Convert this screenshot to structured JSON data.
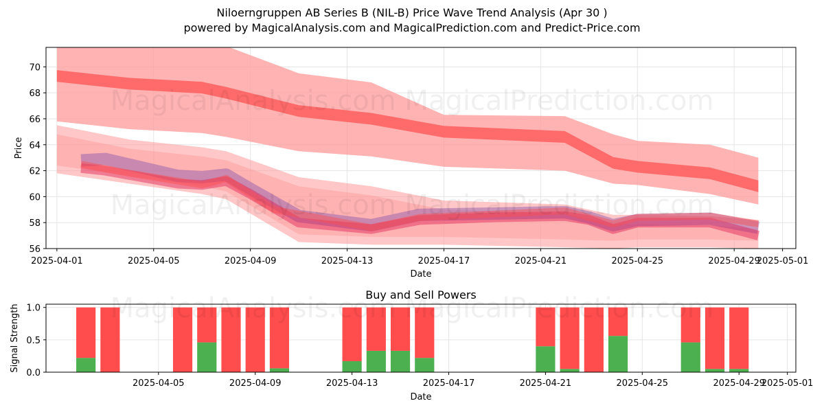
{
  "title": "Niloerngruppen AB Series B (NIL-B) Price Wave Trend Analysis (Apr 30 )",
  "subtitle": "powered by MagicalAnalysis.com and MagicalPrediction.com and Predict-Price.com",
  "watermark": "MagicalAnalysis.com    MagicalPrediction.com",
  "colors": {
    "band_light": "#ff9999",
    "band_dark": "#ff4d4d",
    "purple": "#8855aa",
    "crimson": "#dd2255",
    "buy": "#4caf50",
    "sell": "#ff4d4d",
    "grid": "#e5e5e5"
  },
  "chart_data": [
    {
      "type": "area",
      "title": "",
      "xlabel": "Date",
      "ylabel": "Price",
      "xlim": [
        "2025-03-31",
        "2025-05-01"
      ],
      "ylim": [
        56,
        71.5
      ],
      "x_ticks": [
        "2025-04-01",
        "2025-04-05",
        "2025-04-09",
        "2025-04-13",
        "2025-04-17",
        "2025-04-21",
        "2025-04-25",
        "2025-04-29",
        "2025-05-01"
      ],
      "y_ticks": [
        56,
        58,
        60,
        62,
        64,
        66,
        68,
        70
      ],
      "grid": true,
      "x": [
        "2025-04-01",
        "2025-04-04",
        "2025-04-07",
        "2025-04-08",
        "2025-04-11",
        "2025-04-14",
        "2025-04-17",
        "2025-04-22",
        "2025-04-24",
        "2025-04-25",
        "2025-04-28",
        "2025-04-30"
      ],
      "upper_band": {
        "center": [
          69.3,
          68.7,
          68.4,
          68.0,
          66.6,
          66.0,
          65.0,
          64.6,
          62.6,
          62.3,
          61.8,
          60.8
        ],
        "lower": [
          65.8,
          65.2,
          64.9,
          64.6,
          63.5,
          63.1,
          62.3,
          62.0,
          61.0,
          60.9,
          60.2,
          59.4
        ],
        "upper": [
          71.8,
          71.8,
          71.8,
          71.6,
          69.5,
          68.8,
          66.3,
          66.2,
          64.8,
          64.3,
          64.0,
          63.0
        ]
      },
      "lower_band": {
        "lower": [
          61.8,
          61.0,
          60.2,
          59.8,
          56.5,
          56.3,
          56.3,
          56.1,
          56.0,
          56.1,
          56.1,
          56.0
        ],
        "upper": [
          65.5,
          64.4,
          63.8,
          63.5,
          61.5,
          60.8,
          59.7,
          59.4,
          58.6,
          58.6,
          58.5,
          58.2
        ]
      },
      "series": [
        {
          "name": "",
          "x": [
            "2025-04-02",
            "2025-04-03",
            "2025-04-06",
            "2025-04-07",
            "2025-04-08",
            "2025-04-09",
            "2025-04-11",
            "2025-04-14",
            "2025-04-16",
            "2025-04-19",
            "2025-04-22",
            "2025-04-23",
            "2025-04-24",
            "2025-04-25",
            "2025-04-28",
            "2025-04-30"
          ],
          "values": [
            62.8,
            62.9,
            61.6,
            61.5,
            61.7,
            60.6,
            58.5,
            57.8,
            58.6,
            58.7,
            58.8,
            58.4,
            57.8,
            58.2,
            58.3,
            57.6
          ]
        },
        {
          "name": "",
          "x": [
            "2025-04-02",
            "2025-04-03",
            "2025-04-06",
            "2025-04-07",
            "2025-04-08",
            "2025-04-09",
            "2025-04-11",
            "2025-04-14",
            "2025-04-16",
            "2025-04-19",
            "2025-04-22",
            "2025-04-23",
            "2025-04-24",
            "2025-04-25",
            "2025-04-28",
            "2025-04-30"
          ],
          "values": [
            62.2,
            62.0,
            61.0,
            60.9,
            61.2,
            60.2,
            58.0,
            57.5,
            58.2,
            58.4,
            58.5,
            58.2,
            57.5,
            58.0,
            58.0,
            57.0
          ]
        },
        {
          "name": "",
          "x": [
            "2025-04-02",
            "2025-04-04",
            "2025-04-07",
            "2025-04-08",
            "2025-04-10",
            "2025-04-14",
            "2025-04-16",
            "2025-04-22",
            "2025-04-24",
            "2025-04-25",
            "2025-04-28",
            "2025-04-30"
          ],
          "values": [
            62.5,
            61.8,
            60.9,
            61.4,
            59.0,
            57.6,
            58.4,
            58.9,
            57.9,
            58.4,
            58.5,
            57.9
          ]
        }
      ]
    },
    {
      "type": "bar",
      "title": "Buy and Sell Powers",
      "xlabel": "Date",
      "ylabel": "Signal Strength",
      "xlim": [
        "2025-03-31",
        "2025-05-01"
      ],
      "ylim": [
        0,
        1.05
      ],
      "y_ticks": [
        0.0,
        0.5,
        1.0
      ],
      "y_tick_labels": [
        "0.0",
        "0.5",
        "1.0"
      ],
      "x_ticks": [
        "2025-04-05",
        "2025-04-09",
        "2025-04-13",
        "2025-04-17",
        "2025-04-21",
        "2025-04-25",
        "2025-04-29",
        "2025-05-01"
      ],
      "grid": true,
      "categories": [
        "2025-04-02",
        "2025-04-03",
        "2025-04-06",
        "2025-04-07",
        "2025-04-08",
        "2025-04-09",
        "2025-04-10",
        "2025-04-13",
        "2025-04-14",
        "2025-04-15",
        "2025-04-16",
        "2025-04-21",
        "2025-04-22",
        "2025-04-23",
        "2025-04-24",
        "2025-04-27",
        "2025-04-28",
        "2025-04-29"
      ],
      "series": [
        {
          "name": "Buy",
          "values": [
            0.22,
            0.0,
            0.0,
            0.46,
            0.0,
            0.0,
            0.06,
            0.17,
            0.33,
            0.33,
            0.22,
            0.4,
            0.05,
            0.0,
            0.56,
            0.46,
            0.05,
            0.05
          ]
        },
        {
          "name": "Sell",
          "values": [
            0.78,
            1.0,
            1.0,
            0.54,
            1.0,
            1.0,
            0.94,
            0.83,
            0.67,
            0.67,
            0.78,
            0.6,
            0.95,
            1.0,
            0.44,
            0.54,
            0.95,
            0.95
          ]
        }
      ]
    }
  ]
}
